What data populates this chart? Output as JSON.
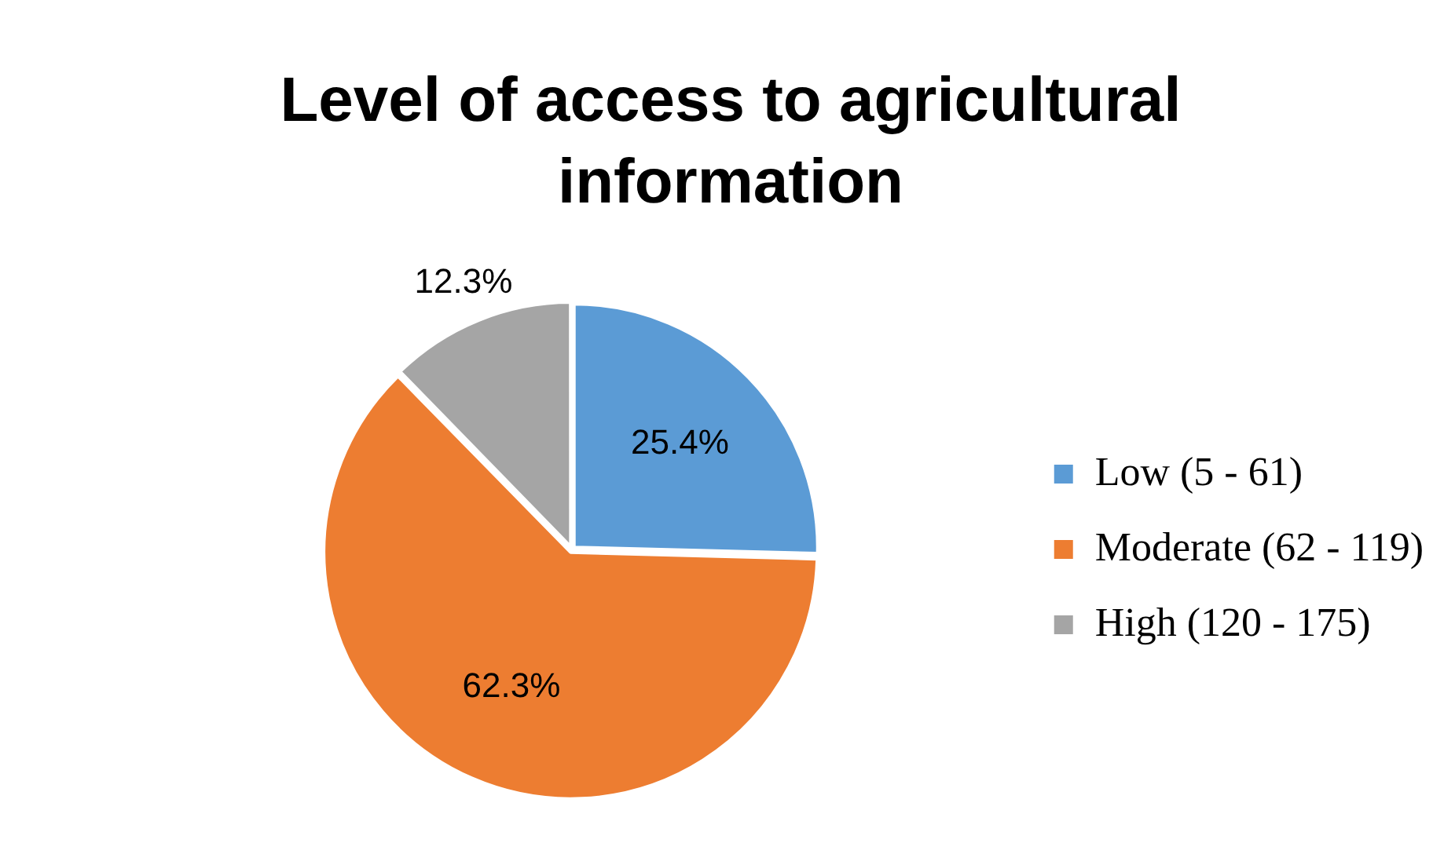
{
  "chart_data": {
    "type": "pie",
    "title": "Level of access to agricultural information",
    "categories": [
      "Low (5 - 61)",
      "Moderate (62 - 119)",
      "High (120 - 175)"
    ],
    "values": [
      25.4,
      62.3,
      12.3
    ],
    "colors": [
      "#5b9bd5",
      "#ed7d31",
      "#a5a5a5"
    ],
    "value_labels": [
      "25.4%",
      "62.3%",
      "12.3%"
    ],
    "legend": "right"
  }
}
